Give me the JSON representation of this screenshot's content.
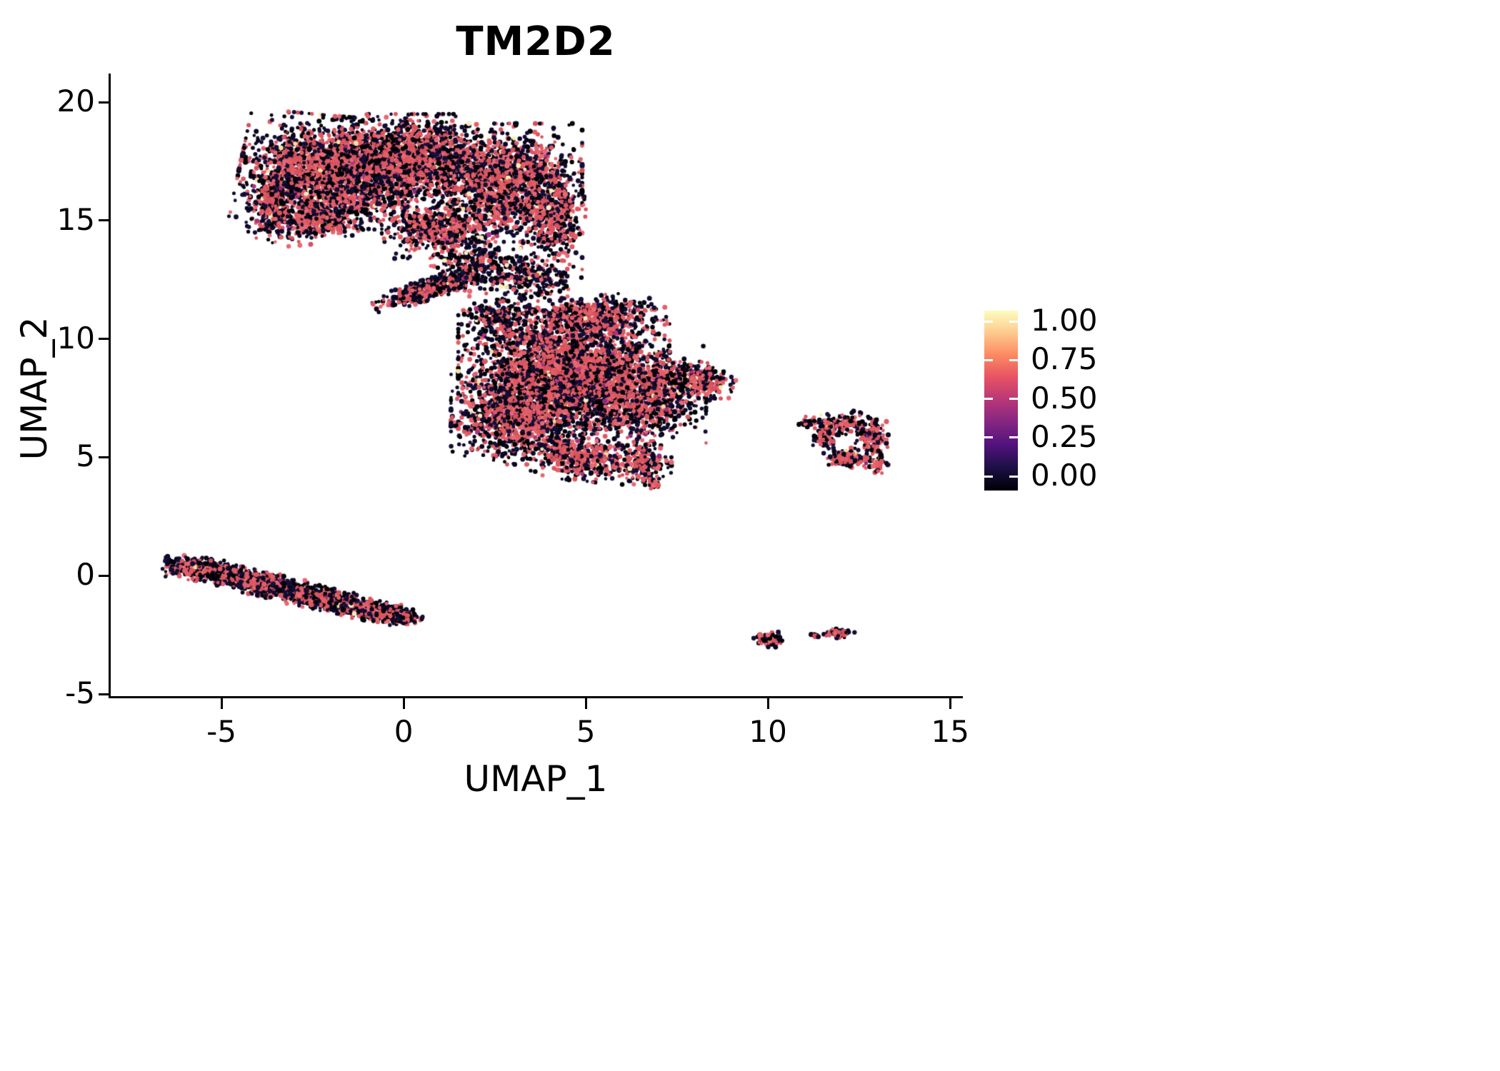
{
  "chart_data": {
    "type": "scatter",
    "title": "TM2D2",
    "xlabel": "UMAP_1",
    "ylabel": "UMAP_2",
    "xlim": [
      -8.04,
      15.29
    ],
    "ylim": [
      -5.09,
      21.15
    ],
    "xticks": [
      -5,
      0,
      5,
      10,
      15
    ],
    "yticks": [
      -5,
      0,
      5,
      10,
      15,
      20
    ],
    "grid": false,
    "legend_position": "right",
    "colorbar": {
      "tick_values": [
        1.0,
        0.75,
        0.5,
        0.25,
        0.0
      ],
      "tick_labels": [
        "1.00",
        "0.75",
        "0.50",
        "0.25",
        "0.00"
      ],
      "colormap": "magma",
      "gradient_stops_bottom_to_top": [
        "#000004",
        "#1C1044",
        "#51127C",
        "#822681",
        "#B63679",
        "#E65164",
        "#FB8861",
        "#FEC98D",
        "#FCFDBF"
      ]
    },
    "point_colors": {
      "black_shades": [
        "#000004",
        "#0A0620",
        "#140E36"
      ],
      "pink_shades": [
        "#DE5A63",
        "#E35F68",
        "#D5525E",
        "#E76973",
        "#DB565F"
      ],
      "cream_shades": [
        "#FBF0B0",
        "#F5E3A0",
        "#FCE9C0"
      ],
      "purple_shades": [
        "#8C2981",
        "#AB337C"
      ],
      "cream_fraction": 0.015,
      "purple_fraction": 0.01
    },
    "clusters": [
      {
        "name": "upper-left-large-cluster",
        "blobs": [
          {
            "cx": -1.9,
            "cy": 17.1,
            "rx": 2.6,
            "ry": 2.3,
            "rot": -8,
            "n": 2500
          },
          {
            "cx": 0.4,
            "cy": 17.6,
            "rx": 2.1,
            "ry": 1.9,
            "rot": 0,
            "n": 1500
          },
          {
            "cx": 2.9,
            "cy": 16.6,
            "rx": 2.0,
            "ry": 2.5,
            "rot": 0,
            "n": 1500
          },
          {
            "cx": 4.1,
            "cy": 15.2,
            "rx": 0.9,
            "ry": 1.9,
            "rot": 0,
            "n": 400
          },
          {
            "cx": -2.6,
            "cy": 14.9,
            "rx": 1.7,
            "ry": 0.9,
            "rot": 8,
            "n": 450
          },
          {
            "cx": -3.6,
            "cy": 15.8,
            "rx": 0.7,
            "ry": 1.1,
            "rot": 0,
            "n": 250
          },
          {
            "cx": 1.0,
            "cy": 14.6,
            "rx": 1.6,
            "ry": 1.2,
            "rot": 0,
            "n": 550
          },
          {
            "cx": 0.6,
            "cy": 12.05,
            "rx": 1.55,
            "ry": 0.42,
            "rot": 25,
            "n": 420
          },
          {
            "cx": 2.0,
            "cy": 13.0,
            "rx": 1.4,
            "ry": 1.1,
            "rot": 0,
            "n": 300,
            "dark": true
          },
          {
            "cx": 3.6,
            "cy": 12.6,
            "rx": 1.3,
            "ry": 1.0,
            "rot": 0,
            "n": 220,
            "dark": true
          }
        ]
      },
      {
        "name": "central-large-cluster",
        "blobs": [
          {
            "cx": 4.4,
            "cy": 8.7,
            "rx": 2.9,
            "ry": 2.5,
            "rot": 0,
            "n": 2800
          },
          {
            "cx": 3.2,
            "cy": 6.6,
            "rx": 1.9,
            "ry": 1.9,
            "rot": 0,
            "n": 1100
          },
          {
            "cx": 6.3,
            "cy": 7.6,
            "rx": 2.0,
            "ry": 2.1,
            "rot": 0,
            "n": 1300
          },
          {
            "cx": 8.0,
            "cy": 8.3,
            "rx": 1.1,
            "ry": 0.75,
            "rot": -15,
            "n": 300
          },
          {
            "cx": 4.9,
            "cy": 5.0,
            "rx": 1.6,
            "ry": 1.0,
            "rot": -10,
            "n": 450
          },
          {
            "cx": 6.6,
            "cy": 4.7,
            "rx": 0.75,
            "ry": 0.95,
            "rot": 0,
            "n": 200
          },
          {
            "cx": 5.2,
            "cy": 10.9,
            "rx": 2.0,
            "ry": 0.95,
            "rot": 5,
            "n": 550
          },
          {
            "cx": 2.6,
            "cy": 10.9,
            "rx": 1.1,
            "ry": 0.9,
            "rot": 0,
            "n": 220,
            "dark": true
          },
          {
            "cx": 6.85,
            "cy": 3.85,
            "rx": 0.25,
            "ry": 0.3,
            "rot": 0,
            "n": 25
          }
        ]
      },
      {
        "name": "right-small-ring-cluster",
        "blobs": [
          {
            "cx": 12.1,
            "cy": 6.4,
            "rx": 0.8,
            "ry": 0.5,
            "rot": 10,
            "n": 130
          },
          {
            "cx": 12.85,
            "cy": 5.8,
            "rx": 0.45,
            "ry": 0.85,
            "rot": 0,
            "n": 150
          },
          {
            "cx": 12.2,
            "cy": 4.95,
            "rx": 0.7,
            "ry": 0.45,
            "rot": -10,
            "n": 130
          },
          {
            "cx": 11.55,
            "cy": 5.9,
            "rx": 0.35,
            "ry": 0.55,
            "rot": 0,
            "n": 70
          },
          {
            "cx": 11.15,
            "cy": 6.5,
            "rx": 0.3,
            "ry": 0.22,
            "rot": 0,
            "n": 30
          },
          {
            "cx": 13.05,
            "cy": 4.7,
            "rx": 0.3,
            "ry": 0.4,
            "rot": 0,
            "n": 40
          }
        ]
      },
      {
        "name": "lower-left-elongated-cluster",
        "blobs": [
          {
            "cx": -5.5,
            "cy": 0.25,
            "rx": 1.1,
            "ry": 0.5,
            "rot": -12,
            "n": 500
          },
          {
            "cx": -4.0,
            "cy": -0.3,
            "rx": 1.3,
            "ry": 0.52,
            "rot": -18,
            "n": 650
          },
          {
            "cx": -2.3,
            "cy": -0.95,
            "rx": 1.4,
            "ry": 0.5,
            "rot": -18,
            "n": 650
          },
          {
            "cx": -0.8,
            "cy": -1.5,
            "rx": 1.1,
            "ry": 0.45,
            "rot": -16,
            "n": 420
          },
          {
            "cx": 0.0,
            "cy": -1.8,
            "rx": 0.5,
            "ry": 0.3,
            "rot": -10,
            "n": 120
          }
        ]
      },
      {
        "name": "lower-right-small-clusters",
        "blobs": [
          {
            "cx": 10.05,
            "cy": -2.7,
            "rx": 0.45,
            "ry": 0.32,
            "rot": 0,
            "n": 90
          },
          {
            "cx": 11.3,
            "cy": -2.55,
            "rx": 0.13,
            "ry": 0.1,
            "rot": 0,
            "n": 10
          },
          {
            "cx": 11.95,
            "cy": -2.45,
            "rx": 0.42,
            "ry": 0.2,
            "rot": -5,
            "n": 65
          }
        ]
      }
    ]
  }
}
